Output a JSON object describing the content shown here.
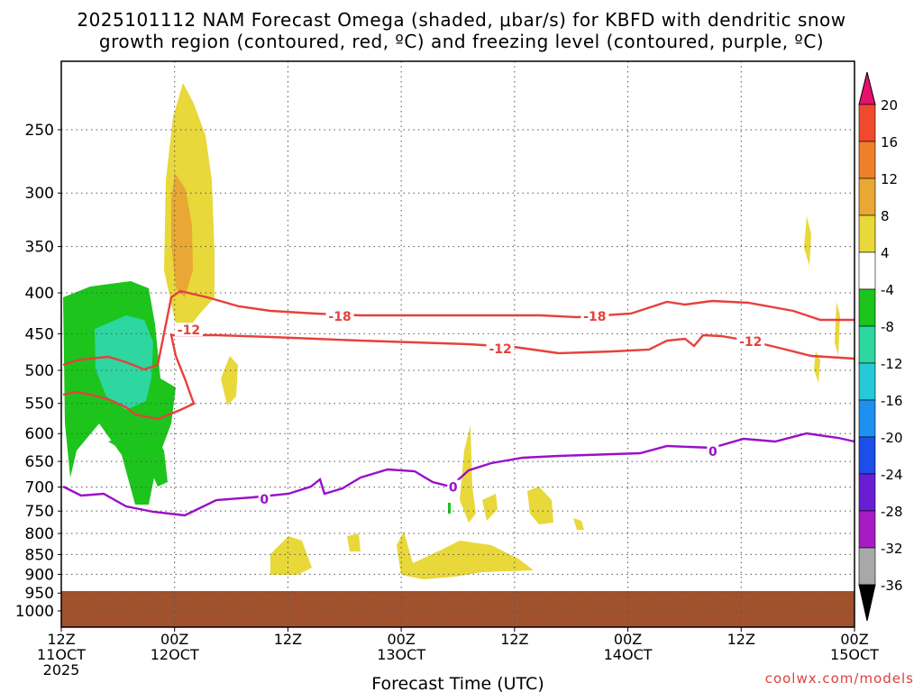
{
  "header": {
    "title_line1": "2025101112 NAM Forecast Omega (shaded, μbar/s) for KBFD with dendritic snow",
    "title_line2": "growth region (contoured, red, ºC) and freezing level (contoured, purple, ºC)"
  },
  "footer": {
    "credit": "coolwx.com/models"
  },
  "chart_data": {
    "type": "time-height cross section",
    "xlabel": "Forecast Time (UTC)",
    "x_ticks": [
      {
        "hours": 0,
        "line1": "12Z",
        "line2": "11OCT",
        "line3": "2025"
      },
      {
        "hours": 12,
        "line1": "00Z",
        "line2": "12OCT",
        "line3": ""
      },
      {
        "hours": 24,
        "line1": "12Z",
        "line2": "",
        "line3": ""
      },
      {
        "hours": 36,
        "line1": "00Z",
        "line2": "13OCT",
        "line3": ""
      },
      {
        "hours": 48,
        "line1": "12Z",
        "line2": "",
        "line3": ""
      },
      {
        "hours": 60,
        "line1": "00Z",
        "line2": "14OCT",
        "line3": ""
      },
      {
        "hours": 72,
        "line1": "12Z",
        "line2": "",
        "line3": ""
      },
      {
        "hours": 84,
        "line1": "00Z",
        "line2": "15OCT",
        "line3": ""
      }
    ],
    "y_ticks": [
      250,
      300,
      350,
      400,
      450,
      500,
      550,
      600,
      650,
      700,
      750,
      800,
      850,
      900,
      950,
      1000
    ],
    "y_scale": "log-pressure (inverted)",
    "colorbar": {
      "labels": [
        20,
        16,
        12,
        8,
        4,
        -4,
        -8,
        -12,
        -16,
        -20,
        -24,
        -28,
        -32,
        -36
      ],
      "colors": [
        "#e8106e",
        "#f04a2e",
        "#f07f2a",
        "#e8a833",
        "#e8d83a",
        "#ffffff",
        "#1cc41c",
        "#2ed6a0",
        "#27c8d8",
        "#1e90f0",
        "#1c4fe8",
        "#6a1ed4",
        "#a61cc4",
        "#a8a8a8",
        "#000000"
      ]
    },
    "contours": [
      {
        "label": "-18",
        "color": "#e8403c",
        "points": [
          [
            12,
            410
          ],
          [
            18,
            425
          ],
          [
            36,
            428
          ],
          [
            54,
            430
          ],
          [
            72,
            412
          ],
          [
            84,
            435
          ]
        ]
      },
      {
        "label": "-12",
        "color": "#e8403c",
        "points": [
          [
            12,
            445
          ],
          [
            24,
            460
          ],
          [
            48,
            475
          ],
          [
            60,
            470
          ],
          [
            72,
            460
          ],
          [
            84,
            485
          ]
        ]
      },
      {
        "label": "0",
        "color": "#9810c8",
        "points": [
          [
            0,
            705
          ],
          [
            6,
            745
          ],
          [
            12,
            760
          ],
          [
            24,
            725
          ],
          [
            36,
            670
          ],
          [
            48,
            645
          ],
          [
            60,
            635
          ],
          [
            72,
            630
          ],
          [
            84,
            605
          ]
        ]
      }
    ],
    "contour_labels": [
      {
        "text": "-18",
        "hours": 29.5,
        "p": 428
      },
      {
        "text": "-18",
        "hours": 56.5,
        "p": 428
      },
      {
        "text": "-12",
        "hours": 13.5,
        "p": 445
      },
      {
        "text": "-12",
        "hours": 46.5,
        "p": 470
      },
      {
        "text": "-12",
        "hours": 73,
        "p": 460
      },
      {
        "text": "0",
        "hours": 21.5,
        "p": 725
      },
      {
        "text": "0",
        "hours": 41.5,
        "p": 700
      },
      {
        "text": "0",
        "hours": 69,
        "p": 632
      }
    ]
  }
}
